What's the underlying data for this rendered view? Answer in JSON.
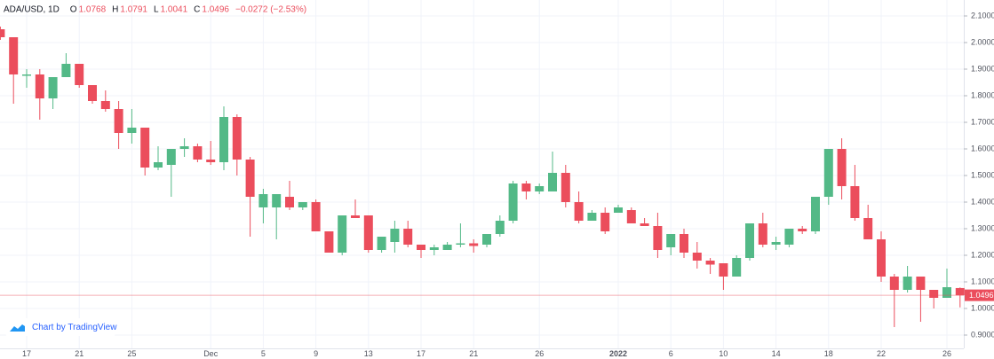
{
  "chart_data": {
    "type": "candlestick",
    "symbol": "ADA/USD, 1D",
    "ohlc_labels": [
      "O",
      "H",
      "L",
      "C"
    ],
    "change": "−0.0272 (−2.53%)",
    "watermark": "Chart by TradingView",
    "up_color": "#53b987",
    "down_color": "#eb4d5c",
    "grid": true,
    "categories": [
      null,
      null,
      "17",
      null,
      null,
      null,
      "21",
      null,
      null,
      null,
      "25",
      null,
      null,
      null,
      null,
      null,
      "Dec",
      null,
      null,
      null,
      "5",
      null,
      null,
      null,
      "9",
      null,
      null,
      null,
      "13",
      null,
      null,
      null,
      "17",
      null,
      null,
      null,
      "21",
      null,
      null,
      null,
      null,
      "26",
      null,
      null,
      null,
      null,
      null,
      "2022",
      null,
      null,
      null,
      "6",
      null,
      null,
      null,
      "10",
      null,
      null,
      null,
      "14",
      null,
      null,
      null,
      "18",
      null,
      null,
      null,
      "22",
      null,
      null,
      null,
      null,
      "26",
      null
    ],
    "series": [
      {
        "name": "ADA/USD",
        "open": [
          2.05,
          2.02,
          1.875,
          1.88,
          1.79,
          1.87,
          1.92,
          1.84,
          1.78,
          1.75,
          1.66,
          1.68,
          1.53,
          1.54,
          1.6,
          1.61,
          1.56,
          1.55,
          1.72,
          1.56,
          1.38,
          1.38,
          1.42,
          1.38,
          1.4,
          1.29,
          1.21,
          1.35,
          1.35,
          1.22,
          1.25,
          1.3,
          1.24,
          1.22,
          1.22,
          1.24,
          1.245,
          1.24,
          1.28,
          1.33,
          1.47,
          1.44,
          1.44,
          1.51,
          1.4,
          1.33,
          1.36,
          1.36,
          1.37,
          1.32,
          1.31,
          1.23,
          1.28,
          1.21,
          1.18,
          1.17,
          1.12,
          1.19,
          1.32,
          1.24,
          1.24,
          1.3,
          1.29,
          1.42,
          1.6,
          1.46,
          1.34,
          1.26,
          1.12,
          1.07,
          1.12,
          1.07,
          1.04,
          1.0768
        ],
        "high": [
          2.06,
          2.02,
          1.9,
          1.9,
          1.87,
          1.96,
          1.92,
          1.84,
          1.82,
          1.78,
          1.75,
          1.68,
          1.61,
          1.6,
          1.64,
          1.62,
          1.63,
          1.76,
          1.73,
          1.57,
          1.45,
          1.43,
          1.48,
          1.4,
          1.41,
          1.29,
          1.35,
          1.41,
          1.35,
          1.27,
          1.33,
          1.33,
          1.24,
          1.24,
          1.25,
          1.32,
          1.26,
          1.28,
          1.35,
          1.48,
          1.48,
          1.47,
          1.59,
          1.54,
          1.44,
          1.37,
          1.38,
          1.39,
          1.38,
          1.34,
          1.36,
          1.28,
          1.3,
          1.25,
          1.19,
          1.17,
          1.2,
          1.32,
          1.36,
          1.27,
          1.3,
          1.31,
          1.42,
          1.6,
          1.64,
          1.54,
          1.39,
          1.29,
          1.13,
          1.16,
          1.12,
          1.07,
          1.15,
          1.0791
        ],
        "low": [
          2.01,
          1.77,
          1.83,
          1.71,
          1.75,
          1.87,
          1.83,
          1.77,
          1.74,
          1.6,
          1.62,
          1.5,
          1.52,
          1.42,
          1.57,
          1.55,
          1.54,
          1.52,
          1.5,
          1.27,
          1.32,
          1.26,
          1.37,
          1.37,
          1.29,
          1.21,
          1.2,
          1.34,
          1.21,
          1.21,
          1.21,
          1.23,
          1.19,
          1.2,
          1.22,
          1.23,
          1.21,
          1.23,
          1.27,
          1.32,
          1.41,
          1.43,
          1.44,
          1.38,
          1.32,
          1.33,
          1.28,
          1.36,
          1.32,
          1.31,
          1.19,
          1.2,
          1.19,
          1.15,
          1.13,
          1.07,
          1.12,
          1.18,
          1.23,
          1.22,
          1.23,
          1.28,
          1.28,
          1.39,
          1.41,
          1.33,
          1.26,
          1.1,
          0.93,
          1.06,
          0.95,
          1.0,
          1.04,
          1.0041
        ],
        "close": [
          2.02,
          1.88,
          1.88,
          1.79,
          1.87,
          1.92,
          1.84,
          1.78,
          1.75,
          1.66,
          1.68,
          1.53,
          1.55,
          1.6,
          1.61,
          1.56,
          1.55,
          1.72,
          1.56,
          1.42,
          1.43,
          1.43,
          1.38,
          1.4,
          1.29,
          1.21,
          1.35,
          1.34,
          1.22,
          1.27,
          1.3,
          1.24,
          1.22,
          1.23,
          1.24,
          1.245,
          1.235,
          1.28,
          1.33,
          1.47,
          1.44,
          1.46,
          1.51,
          1.4,
          1.33,
          1.36,
          1.29,
          1.38,
          1.32,
          1.31,
          1.22,
          1.28,
          1.21,
          1.18,
          1.165,
          1.12,
          1.19,
          1.32,
          1.24,
          1.25,
          1.3,
          1.29,
          1.42,
          1.6,
          1.46,
          1.34,
          1.26,
          1.12,
          1.07,
          1.12,
          1.07,
          1.04,
          1.08,
          1.0496
        ]
      }
    ],
    "ylim": [
      0.85,
      2.16
    ],
    "yticks": [
      {
        "value": 0.9,
        "label": "0.9000"
      },
      {
        "value": 1.0,
        "label": "1.0000"
      },
      {
        "value": 1.1,
        "label": "1.1000"
      },
      {
        "value": 1.2,
        "label": "1.2000"
      },
      {
        "value": 1.3,
        "label": "1.3000"
      },
      {
        "value": 1.4,
        "label": "1.4000"
      },
      {
        "value": 1.5,
        "label": "1.5000"
      },
      {
        "value": 1.6,
        "label": "1.6000"
      },
      {
        "value": 1.7,
        "label": "1.7000"
      },
      {
        "value": 1.8,
        "label": "1.8000"
      },
      {
        "value": 1.9,
        "label": "1.9000"
      },
      {
        "value": 2.0,
        "label": "2.0000"
      },
      {
        "value": 2.1,
        "label": "2.1000"
      }
    ]
  }
}
